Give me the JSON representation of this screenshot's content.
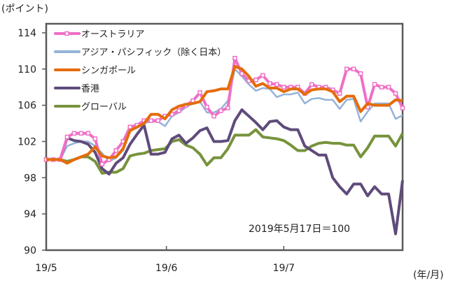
{
  "chart_data": {
    "type": "line",
    "title": "",
    "ylabel": "(ポイント)",
    "xlabel": "(年/月)",
    "annotation": "2019年5月17日＝100",
    "ylim": [
      90,
      115
    ],
    "yticks": [
      90,
      94,
      98,
      102,
      106,
      110,
      114
    ],
    "xlim": [
      0,
      51
    ],
    "xticks": [
      {
        "x": 0,
        "label": "19/5"
      },
      {
        "x": 17.2,
        "label": "19/6"
      },
      {
        "x": 34,
        "label": "19/7"
      }
    ],
    "grid": false,
    "legend_position": "top-left",
    "series": [
      {
        "name": "オーストラリア",
        "color": "#f06fc6",
        "marker": "square",
        "values": [
          100,
          100,
          100,
          102.5,
          102.9,
          102.9,
          102.9,
          102.3,
          99.5,
          100,
          101,
          102,
          103.6,
          103.8,
          104.3,
          104.3,
          104.3,
          104.8,
          105,
          105.4,
          106,
          106.5,
          107.4,
          105.8,
          104.8,
          105.4,
          105.7,
          111.2,
          109.5,
          108.7,
          108.8,
          109.3,
          108.4,
          108.3,
          108,
          108,
          108,
          107.3,
          108.3,
          108,
          108,
          107.7,
          107.3,
          110,
          110,
          109.5,
          105.8,
          108.3,
          108,
          108,
          107.3,
          105.7
        ]
      },
      {
        "name": "アジア・パシフィック（除く日本）",
        "color": "#95b3d7",
        "marker": "none",
        "values": [
          100,
          100,
          100,
          101.5,
          101.8,
          102,
          102,
          101.5,
          100.7,
          99.8,
          100.2,
          101,
          103.2,
          103.5,
          104,
          104.2,
          104.2,
          103.7,
          104.8,
          105.2,
          105.8,
          106.2,
          106.4,
          105.2,
          105.2,
          105.6,
          106.5,
          110,
          109.2,
          108.3,
          107.6,
          107.9,
          107.8,
          106.9,
          107.2,
          107.2,
          107.4,
          106.2,
          106.7,
          106.8,
          106.6,
          106.6,
          105.6,
          106.6,
          106.7,
          104.2,
          105.3,
          106.2,
          106.2,
          106.2,
          104.5,
          104.9
        ]
      },
      {
        "name": "シンガポール",
        "color": "#e46c0a",
        "marker": "none",
        "values": [
          100,
          100,
          100,
          99.6,
          100,
          100.3,
          100.6,
          101.4,
          100.4,
          100.2,
          100.3,
          101.2,
          103.2,
          103.6,
          104,
          105,
          105,
          104.5,
          105.5,
          105.9,
          106.1,
          106.2,
          106.4,
          107.5,
          107.6,
          107.8,
          107.8,
          110.3,
          110,
          109.2,
          108.1,
          108.4,
          107.9,
          107.9,
          107.5,
          107.8,
          107.8,
          107.2,
          107.7,
          107.8,
          107.8,
          107.5,
          106.4,
          107,
          107,
          105.3,
          106.2,
          106,
          106,
          106,
          106.6,
          106.5
        ]
      },
      {
        "name": "香港",
        "color": "#5f4b7b",
        "marker": "none",
        "values": [
          100,
          100,
          100,
          102.4,
          102.1,
          102,
          101.7,
          100.8,
          99,
          98.4,
          99.6,
          100.2,
          101.7,
          102.8,
          103.8,
          100.6,
          100.6,
          100.8,
          102.3,
          102.7,
          101.8,
          102.4,
          103.2,
          103.5,
          102,
          102,
          102.1,
          104.3,
          105.5,
          104.8,
          104.1,
          103.3,
          104.2,
          104.3,
          103.6,
          103.3,
          103.3,
          101.5,
          101,
          100.5,
          100.5,
          98,
          97,
          96.2,
          97.3,
          97.3,
          96,
          97,
          96.2,
          96.2,
          91.8,
          97.7
        ]
      },
      {
        "name": "グローバル",
        "color": "#77933c",
        "marker": "none",
        "values": [
          100,
          100,
          100,
          99.8,
          100,
          100.3,
          100.3,
          99.8,
          98.5,
          98.6,
          98.6,
          99,
          100.4,
          100.6,
          100.7,
          101,
          101.1,
          101.2,
          102,
          102.2,
          101.6,
          101.3,
          100.6,
          99.4,
          100.2,
          100.2,
          101.2,
          102.7,
          102.7,
          102.7,
          103.3,
          102.5,
          102.4,
          102.3,
          102.1,
          101.6,
          101,
          101,
          101.5,
          101.8,
          101.9,
          101.8,
          101.8,
          101.6,
          101.6,
          100.3,
          101.3,
          102.6,
          102.6,
          102.6,
          101.5,
          102.9
        ]
      }
    ]
  }
}
